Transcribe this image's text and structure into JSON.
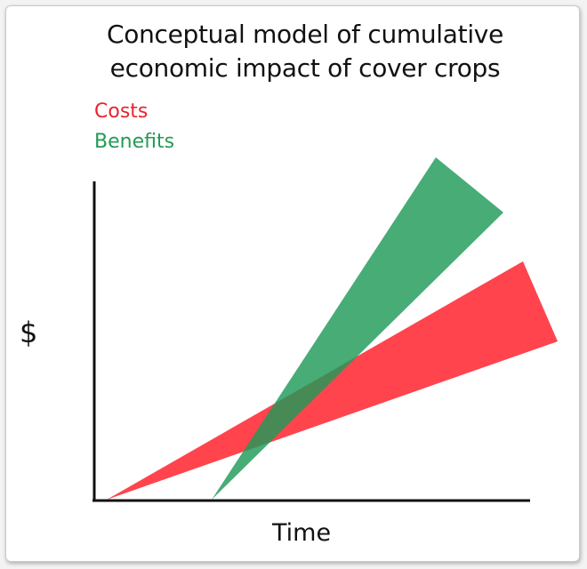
{
  "title_line1": "Conceptual model of cumulative",
  "title_line2": "economic impact of cover crops",
  "legend": {
    "costs": {
      "label": "Costs",
      "color": "#e8232f"
    },
    "benefits": {
      "label": "Benefits",
      "color": "#249a55"
    }
  },
  "axes": {
    "x_label": "Time",
    "y_label": "$"
  },
  "colors": {
    "costs_fill": "#ff2a36",
    "benefits_fill": "#1f9a58",
    "axis": "#111111"
  }
}
